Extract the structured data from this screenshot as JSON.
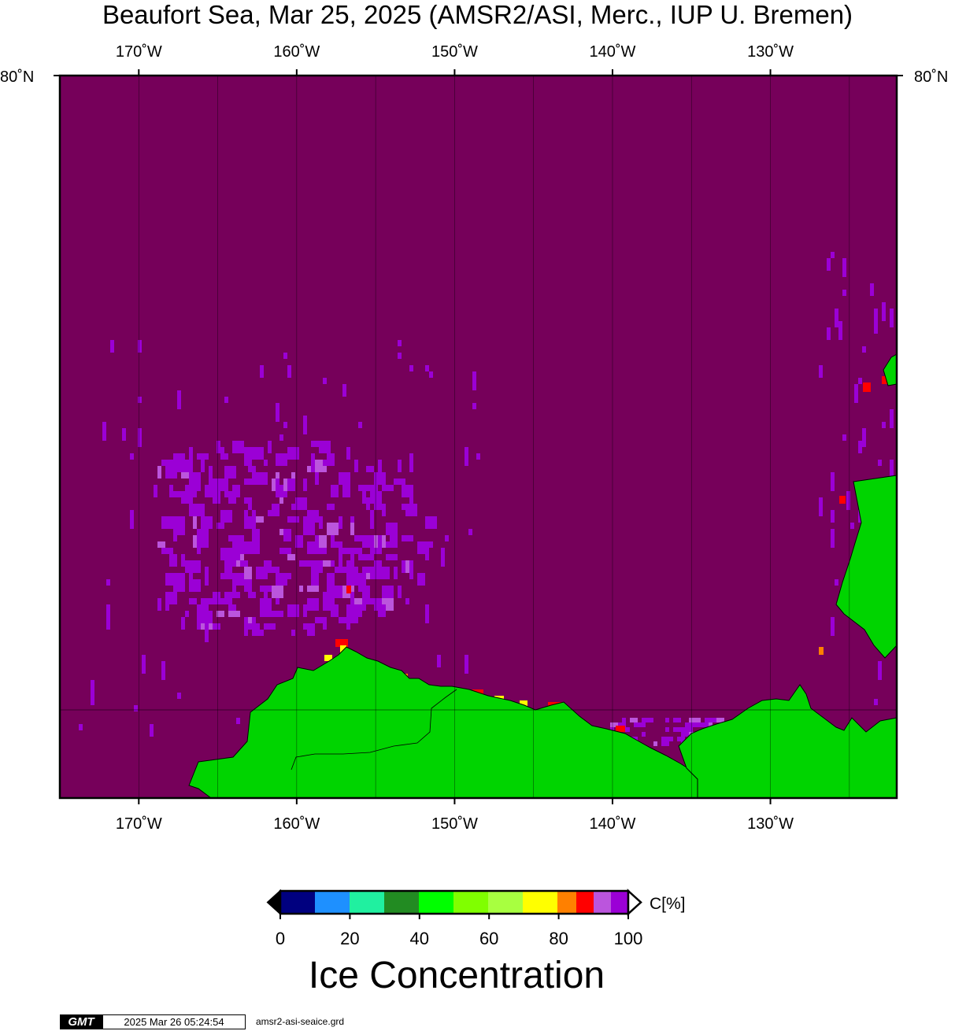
{
  "title": "Beaufort Sea, Mar 25, 2025 (AMSR2/ASI, Merc., IUP U. Bremen)",
  "map": {
    "longitude_labels": [
      "170˚W",
      "160˚W",
      "150˚W",
      "140˚W",
      "130˚W"
    ],
    "latitude_label": "80˚N",
    "lon_range": [
      -175,
      -122
    ],
    "colors": {
      "ice_100": "#76005a",
      "ice_95": "#9b00d6",
      "ice_90": "#bb55dd",
      "ice_85": "#ff0000",
      "ice_80": "#ff7f00",
      "ice_75": "#ffff00",
      "land": "#00d400",
      "frame": "#000000"
    }
  },
  "colorbar": {
    "tick_labels": [
      "0",
      "20",
      "40",
      "60",
      "80",
      "100"
    ],
    "unit": "C[%]",
    "title": "Ice Concentration",
    "colors": [
      "#00007f",
      "#1e90ff",
      "#20f0a0",
      "#228b22",
      "#00ff00",
      "#80ff00",
      "#a8ff40",
      "#ffff00",
      "#ff8000",
      "#ff0000",
      "#bb55dd",
      "#9b00d6"
    ]
  },
  "footer": {
    "logo": "GMT",
    "timestamp": "2025 Mar 26 05:24:54",
    "filename": "amsr2-asi-seaice.grd"
  }
}
